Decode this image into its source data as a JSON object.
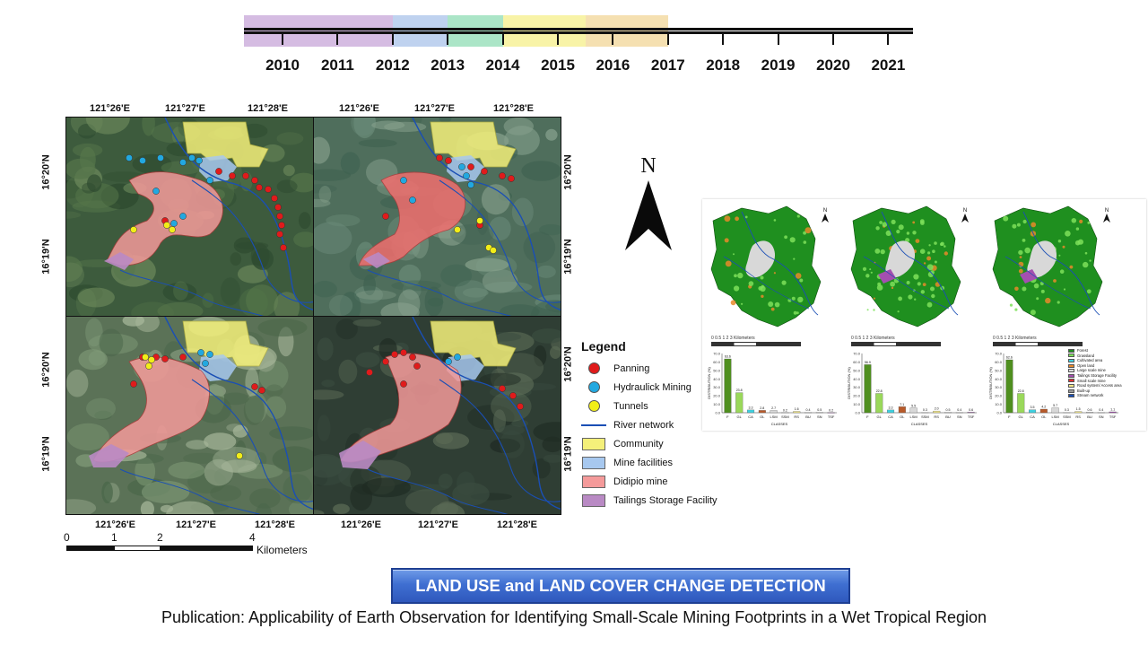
{
  "timeline": {
    "years": [
      "2010",
      "2011",
      "2012",
      "2013",
      "2014",
      "2015",
      "2016",
      "2017",
      "2018",
      "2019",
      "2020",
      "2021"
    ],
    "segments": [
      {
        "from": "2010",
        "to": "2012",
        "color": "#c7a6d8"
      },
      {
        "from": "2012",
        "to": "2013",
        "color": "#a9c3ea"
      },
      {
        "from": "2013",
        "to": "2014",
        "color": "#8fdcb4"
      },
      {
        "from": "2014",
        "to": "2015.5",
        "color": "#f5ef8a"
      },
      {
        "from": "2015.5",
        "to": "2017",
        "color": "#f2d697"
      }
    ]
  },
  "map": {
    "coords": {
      "lon_a": "121°26'E",
      "lon_b": "121°27'E",
      "lon_c": "121°28'E",
      "lat_a": "16°20'N",
      "lat_b": "16°19'N"
    },
    "legend": {
      "title": "Legend",
      "items": [
        {
          "label": "Panning",
          "kind": "dot",
          "color": "#e01b1b"
        },
        {
          "label": "Hydraulick Mining",
          "kind": "dot",
          "color": "#22a8e0"
        },
        {
          "label": "Tunnels",
          "kind": "dot",
          "color": "#f2ee18"
        },
        {
          "label": "River network",
          "kind": "line",
          "color": "#1a4fb5"
        },
        {
          "label": "Community",
          "kind": "swatch",
          "color": "#f4f07a"
        },
        {
          "label": "Mine facilities",
          "kind": "swatch",
          "color": "#a7c8ef"
        },
        {
          "label": "Didipio mine",
          "kind": "swatch",
          "color": "#f49a9a"
        },
        {
          "label": "Tailings Storage Facility",
          "kind": "swatch",
          "color": "#b98ac4"
        }
      ]
    },
    "scale": {
      "labels": [
        "0",
        "1",
        "2",
        "4"
      ],
      "unit": "Kilometers"
    },
    "north": "N"
  },
  "side_figure": {
    "north": "N",
    "scale_labels": [
      "0",
      "0.5",
      "1",
      "2",
      "3",
      "Kilometers"
    ],
    "y_axis_label": "DISTRIBUTION (%)",
    "x_axis_label": "CLASSES",
    "legend": [
      {
        "label": "Forest",
        "color": "#1f8f1f"
      },
      {
        "label": "Grassland",
        "color": "#7ee05a"
      },
      {
        "label": "Cultivated area",
        "color": "#3fd0e0"
      },
      {
        "label": "Open land",
        "color": "#e88a2a"
      },
      {
        "label": "Large scale mine",
        "color": "#d8d8d8"
      },
      {
        "label": "Tailings Storage Facility",
        "color": "#a44fb0"
      },
      {
        "label": "Small scale mine",
        "color": "#e03030"
      },
      {
        "label": "Road system/ Access area",
        "color": "#f4e88a"
      },
      {
        "label": "Built-up",
        "color": "#999999"
      },
      {
        "label": "Stream network",
        "color": "#1a4fb5"
      }
    ]
  },
  "chart_data": [
    {
      "type": "bar",
      "categories": [
        "F",
        "GL",
        "CA",
        "OL",
        "LSM",
        "SSM",
        "RS",
        "BU",
        "SN",
        "TSF"
      ],
      "values": [
        63.6,
        23.8,
        3.3,
        2.8,
        2.7,
        0.2,
        1.6,
        0.4,
        0.5,
        0.2
      ],
      "ylabel": "DISTRIBUTION (%)",
      "xlabel": "CLASSES",
      "ylim": [
        0,
        70
      ]
    },
    {
      "type": "bar",
      "categories": [
        "F",
        "GL",
        "CA",
        "OL",
        "LSM",
        "SSM",
        "RS",
        "BU",
        "SN",
        "TSF"
      ],
      "values": [
        56.9,
        22.8,
        3.3,
        7.1,
        5.5,
        0.3,
        2.0,
        0.5,
        0.4,
        0.6
      ],
      "ylabel": "DISTRIBUTION (%)",
      "xlabel": "CLASSES",
      "ylim": [
        0,
        70
      ]
    },
    {
      "type": "bar",
      "categories": [
        "F",
        "GL",
        "CA",
        "OL",
        "LSM",
        "SSM",
        "RS",
        "BU",
        "SN",
        "TSF"
      ],
      "values": [
        62.6,
        22.8,
        3.5,
        4.2,
        5.7,
        0.3,
        1.5,
        0.6,
        0.4,
        1.1
      ],
      "ylabel": "DISTRIBUTION (%)",
      "xlabel": "CLASSES",
      "ylim": [
        0,
        70
      ]
    }
  ],
  "banner": {
    "text": "LAND USE and LAND COVER CHANGE DETECTION"
  },
  "caption": {
    "text": "Publication: Applicability of Earth Observation for Identifying Small-Scale Mining Footprints in a Wet Tropical Region"
  }
}
